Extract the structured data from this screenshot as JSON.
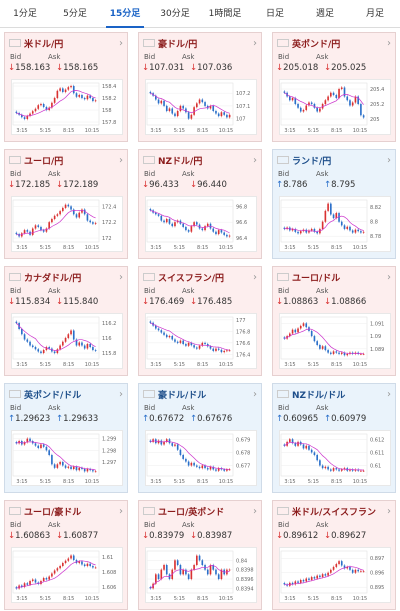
{
  "tabs": [
    {
      "label": "1分足"
    },
    {
      "label": "5分足"
    },
    {
      "label": "15分足",
      "active": true
    },
    {
      "label": "30分足"
    },
    {
      "label": "1時間足"
    },
    {
      "label": "日足"
    },
    {
      "label": "週足"
    },
    {
      "label": "月足"
    }
  ],
  "labels": {
    "bid": "Bid",
    "ask": "Ask"
  },
  "colors": {
    "down_bg": "#fdeeee",
    "up_bg": "#eaf3fb",
    "down": "#d93131",
    "up": "#2a6fc9",
    "ma": "#cc33cc"
  },
  "cards": [
    {
      "pair": "米ドル/円",
      "flag": "us",
      "dir": "down",
      "bid": "158.163",
      "ask": "158.165",
      "chart_data": {
        "type": "candlestick",
        "ticks_y": [
          "158.4",
          "158.2",
          "158",
          "157.8"
        ],
        "ticks_x": [
          "3:15",
          "5:15",
          "8:15",
          "10:15"
        ],
        "ylim": [
          157.75,
          158.45
        ],
        "closes": [
          157.95,
          157.92,
          157.88,
          157.85,
          157.9,
          157.94,
          157.98,
          158.02,
          158.08,
          158.1,
          158.05,
          158.0,
          158.04,
          158.12,
          158.2,
          158.32,
          158.36,
          158.3,
          158.34,
          158.38,
          158.4,
          158.28,
          158.22,
          158.25,
          158.2,
          158.18,
          158.24,
          158.2,
          158.15,
          158.16
        ]
      }
    },
    {
      "pair": "豪ドル/円",
      "flag": "au",
      "dir": "down",
      "bid": "107.031",
      "ask": "107.036",
      "chart_data": {
        "type": "candlestick",
        "ticks_y": [
          "107.2",
          "107.1",
          "107"
        ],
        "ticks_x": [
          "3:15",
          "5:15",
          "8:15",
          "10:15"
        ],
        "ylim": [
          106.95,
          107.28
        ],
        "closes": [
          107.2,
          107.18,
          107.15,
          107.12,
          107.14,
          107.1,
          107.06,
          107.08,
          107.04,
          107.02,
          107.06,
          107.1,
          107.08,
          107.05,
          107.0,
          107.03,
          107.09,
          107.12,
          107.15,
          107.13,
          107.1,
          107.08,
          107.1,
          107.06,
          107.04,
          107.02,
          107.05,
          107.03,
          107.01,
          107.03
        ]
      }
    },
    {
      "pair": "英ポンド/円",
      "flag": "uk",
      "dir": "down",
      "bid": "205.018",
      "ask": "205.025",
      "chart_data": {
        "type": "candlestick",
        "ticks_y": [
          "205.4",
          "205.2",
          "205"
        ],
        "ticks_x": [
          "3:15",
          "5:15",
          "8:15",
          "10:15"
        ],
        "ylim": [
          204.92,
          205.48
        ],
        "closes": [
          205.35,
          205.3,
          205.25,
          205.28,
          205.2,
          205.15,
          205.1,
          205.12,
          205.18,
          205.22,
          205.2,
          205.15,
          205.1,
          205.14,
          205.2,
          205.25,
          205.3,
          205.35,
          205.32,
          205.28,
          205.4,
          205.42,
          205.3,
          205.25,
          205.18,
          205.22,
          205.3,
          205.2,
          205.05,
          205.02
        ]
      }
    },
    {
      "pair": "ユーロ/円",
      "flag": "eu",
      "dir": "down",
      "bid": "172.185",
      "ask": "172.189",
      "chart_data": {
        "type": "candlestick",
        "ticks_y": [
          "172.4",
          "172.2",
          "172"
        ],
        "ticks_x": [
          "3:15",
          "5:15",
          "8:15",
          "10:15"
        ],
        "ylim": [
          171.95,
          172.48
        ],
        "closes": [
          172.05,
          172.02,
          172.06,
          172.1,
          172.08,
          172.04,
          172.12,
          172.16,
          172.14,
          172.1,
          172.08,
          172.12,
          172.2,
          172.24,
          172.28,
          172.3,
          172.34,
          172.38,
          172.42,
          172.4,
          172.36,
          172.3,
          172.26,
          172.32,
          172.36,
          172.3,
          172.22,
          172.2,
          172.18,
          172.19
        ]
      }
    },
    {
      "pair": "NZドル/円",
      "flag": "nz",
      "dir": "down",
      "bid": "96.433",
      "ask": "96.440",
      "chart_data": {
        "type": "candlestick",
        "ticks_y": [
          "96.8",
          "96.6",
          "96.4"
        ],
        "ticks_x": [
          "3:15",
          "5:15",
          "8:15",
          "10:15"
        ],
        "ylim": [
          96.35,
          96.88
        ],
        "closes": [
          96.75,
          96.72,
          96.7,
          96.68,
          96.62,
          96.6,
          96.64,
          96.58,
          96.55,
          96.6,
          96.62,
          96.58,
          96.54,
          96.5,
          96.48,
          96.55,
          96.6,
          96.57,
          96.52,
          96.5,
          96.55,
          96.58,
          96.52,
          96.48,
          96.45,
          96.5,
          96.47,
          96.44,
          96.42,
          96.43
        ]
      }
    },
    {
      "pair": "ランド/円",
      "flag": "za",
      "dir": "up",
      "bid": "8.786",
      "ask": "8.795",
      "chart_data": {
        "type": "candlestick",
        "ticks_y": [
          "8.82",
          "8.8",
          "8.78"
        ],
        "ticks_x": [
          "3:15",
          "5:15",
          "8:15",
          "10:15"
        ],
        "ylim": [
          8.772,
          8.83
        ],
        "closes": [
          8.79,
          8.792,
          8.788,
          8.79,
          8.786,
          8.784,
          8.787,
          8.789,
          8.785,
          8.788,
          8.79,
          8.786,
          8.784,
          8.79,
          8.8,
          8.815,
          8.825,
          8.81,
          8.805,
          8.812,
          8.8,
          8.795,
          8.79,
          8.793,
          8.788,
          8.785,
          8.789,
          8.787,
          8.785,
          8.786
        ]
      }
    },
    {
      "pair": "カナダドル/円",
      "flag": "ca",
      "dir": "down",
      "bid": "115.834",
      "ask": "115.840",
      "chart_data": {
        "type": "candlestick",
        "ticks_y": [
          "116.2",
          "116",
          "115.8"
        ],
        "ticks_x": [
          "3:15",
          "5:15",
          "8:15",
          "10:15"
        ],
        "ylim": [
          115.72,
          116.28
        ],
        "closes": [
          116.2,
          116.12,
          116.05,
          115.98,
          115.95,
          115.9,
          115.88,
          115.85,
          115.82,
          115.8,
          115.84,
          115.88,
          115.86,
          115.82,
          115.8,
          115.85,
          115.9,
          115.95,
          116.0,
          116.05,
          116.1,
          115.98,
          115.9,
          115.94,
          115.9,
          115.86,
          115.92,
          115.88,
          115.84,
          115.83
        ]
      }
    },
    {
      "pair": "スイスフラン/円",
      "flag": "ch",
      "dir": "down",
      "bid": "176.469",
      "ask": "176.485",
      "chart_data": {
        "type": "candlestick",
        "ticks_y": [
          "177",
          "176.8",
          "176.6",
          "176.4"
        ],
        "ticks_x": [
          "3:15",
          "5:15",
          "8:15",
          "10:15"
        ],
        "ylim": [
          176.32,
          177.05
        ],
        "closes": [
          176.95,
          176.9,
          176.85,
          176.82,
          176.78,
          176.74,
          176.7,
          176.72,
          176.66,
          176.62,
          176.6,
          176.64,
          176.58,
          176.55,
          176.6,
          176.56,
          176.52,
          176.5,
          176.55,
          176.6,
          176.58,
          176.54,
          176.5,
          176.46,
          176.5,
          176.48,
          176.44,
          176.46,
          176.47,
          176.47
        ]
      }
    },
    {
      "pair": "ユーロ/ドル",
      "flag": "eu",
      "dir": "down",
      "bid": "1.08863",
      "ask": "1.08866",
      "chart_data": {
        "type": "candlestick",
        "ticks_y": [
          "1.091",
          "1.09",
          "1.089"
        ],
        "ticks_x": [
          "3:15",
          "5:15",
          "8:15",
          "10:15"
        ],
        "ylim": [
          1.0882,
          1.0915
        ],
        "closes": [
          1.0898,
          1.09,
          1.0902,
          1.0905,
          1.0903,
          1.0906,
          1.0908,
          1.091,
          1.0907,
          1.0904,
          1.09,
          1.0896,
          1.0893,
          1.089,
          1.0892,
          1.0889,
          1.0887,
          1.0886,
          1.0888,
          1.0887,
          1.0886,
          1.0887,
          1.0885,
          1.0886,
          1.0887,
          1.0886,
          1.0887,
          1.0886,
          1.0886,
          1.0886
        ]
      }
    },
    {
      "pair": "英ポンド/ドル",
      "flag": "uk",
      "dir": "up",
      "bid": "1.29623",
      "ask": "1.29633",
      "chart_data": {
        "type": "candlestick",
        "ticks_y": [
          "1.299",
          "1.298",
          "1.297"
        ],
        "ticks_x": [
          "3:15",
          "5:15",
          "8:15",
          "10:15"
        ],
        "ylim": [
          1.2958,
          1.2994
        ],
        "closes": [
          1.2986,
          1.2988,
          1.2985,
          1.2987,
          1.299,
          1.2988,
          1.2986,
          1.2984,
          1.2982,
          1.2985,
          1.2983,
          1.298,
          1.2976,
          1.2968,
          1.2965,
          1.2968,
          1.297,
          1.2967,
          1.2965,
          1.2966,
          1.2964,
          1.2966,
          1.2963,
          1.2965,
          1.2964,
          1.2962,
          1.2964,
          1.2963,
          1.2962,
          1.2962
        ]
      }
    },
    {
      "pair": "豪ドル/ドル",
      "flag": "au",
      "dir": "up",
      "bid": "0.67672",
      "ask": "0.67676",
      "chart_data": {
        "type": "candlestick",
        "ticks_y": [
          "0.679",
          "0.678",
          "0.677"
        ],
        "ticks_x": [
          "3:15",
          "5:15",
          "8:15",
          "10:15"
        ],
        "ylim": [
          0.6762,
          0.6794
        ],
        "closes": [
          0.6788,
          0.679,
          0.6787,
          0.6789,
          0.6786,
          0.6788,
          0.679,
          0.6787,
          0.6785,
          0.6786,
          0.6782,
          0.6778,
          0.6775,
          0.6773,
          0.677,
          0.6772,
          0.677,
          0.6769,
          0.6768,
          0.677,
          0.6768,
          0.6767,
          0.6769,
          0.6767,
          0.6766,
          0.6768,
          0.6767,
          0.6766,
          0.6767,
          0.6767
        ]
      }
    },
    {
      "pair": "NZドル/ドル",
      "flag": "nz",
      "dir": "up",
      "bid": "0.60965",
      "ask": "0.60979",
      "chart_data": {
        "type": "candlestick",
        "ticks_y": [
          "0.612",
          "0.611",
          "0.61"
        ],
        "ticks_x": [
          "3:15",
          "5:15",
          "8:15",
          "10:15"
        ],
        "ylim": [
          0.6092,
          0.6124
        ],
        "closes": [
          0.6115,
          0.6118,
          0.612,
          0.6117,
          0.6115,
          0.6118,
          0.6116,
          0.6113,
          0.6115,
          0.6112,
          0.611,
          0.6108,
          0.6104,
          0.61,
          0.6098,
          0.6099,
          0.6097,
          0.6096,
          0.6098,
          0.6097,
          0.6096,
          0.6097,
          0.6098,
          0.6096,
          0.6097,
          0.6096,
          0.6097,
          0.6096,
          0.6096,
          0.6096
        ]
      }
    },
    {
      "pair": "ユーロ/豪ドル",
      "flag": "eu",
      "dir": "down",
      "bid": "1.60863",
      "ask": "1.60877",
      "chart_data": {
        "type": "candlestick",
        "ticks_y": [
          "1.61",
          "1.608",
          "1.606"
        ],
        "ticks_x": [
          "3:15",
          "5:15",
          "8:15",
          "10:15"
        ],
        "ylim": [
          1.6052,
          1.6108
        ],
        "closes": [
          1.6058,
          1.6062,
          1.606,
          1.6065,
          1.6063,
          1.6068,
          1.607,
          1.6066,
          1.6064,
          1.6068,
          1.6072,
          1.607,
          1.6074,
          1.6078,
          1.6082,
          1.6085,
          1.6088,
          1.6092,
          1.6095,
          1.6098,
          1.6102,
          1.6096,
          1.6092,
          1.6094,
          1.609,
          1.6088,
          1.6091,
          1.6088,
          1.6086,
          1.6086
        ]
      }
    },
    {
      "pair": "ユーロ/英ポンド",
      "flag": "eu",
      "dir": "down",
      "bid": "0.83979",
      "ask": "0.83987",
      "chart_data": {
        "type": "candlestick",
        "ticks_y": [
          "0.84",
          "0.8398",
          "0.8396",
          "0.8394"
        ],
        "ticks_x": [
          "3:15",
          "5:15",
          "8:15",
          "10:15"
        ],
        "ylim": [
          0.8393,
          0.8402
        ],
        "closes": [
          0.8394,
          0.8395,
          0.8397,
          0.8396,
          0.8398,
          0.8399,
          0.8397,
          0.8396,
          0.8398,
          0.84,
          0.8399,
          0.8397,
          0.8398,
          0.8397,
          0.8396,
          0.8398,
          0.8399,
          0.8401,
          0.84,
          0.8399,
          0.8398,
          0.8397,
          0.8399,
          0.8398,
          0.8397,
          0.8396,
          0.8398,
          0.8397,
          0.8398,
          0.8398
        ]
      }
    },
    {
      "pair": "米ドル/スイスフラン",
      "flag": "us",
      "dir": "down",
      "bid": "0.89612",
      "ask": "0.89627",
      "chart_data": {
        "type": "candlestick",
        "ticks_y": [
          "0.897",
          "0.896",
          "0.895"
        ],
        "ticks_x": [
          "3:15",
          "5:15",
          "8:15",
          "10:15"
        ],
        "ylim": [
          0.8946,
          0.8975
        ],
        "closes": [
          0.8952,
          0.8951,
          0.8953,
          0.8952,
          0.8954,
          0.8953,
          0.8955,
          0.8954,
          0.8956,
          0.8955,
          0.8957,
          0.8956,
          0.8958,
          0.8957,
          0.8959,
          0.8958,
          0.896,
          0.8962,
          0.8964,
          0.8966,
          0.8968,
          0.8965,
          0.8963,
          0.8964,
          0.8962,
          0.896,
          0.8962,
          0.8961,
          0.8961,
          0.8961
        ]
      }
    }
  ]
}
